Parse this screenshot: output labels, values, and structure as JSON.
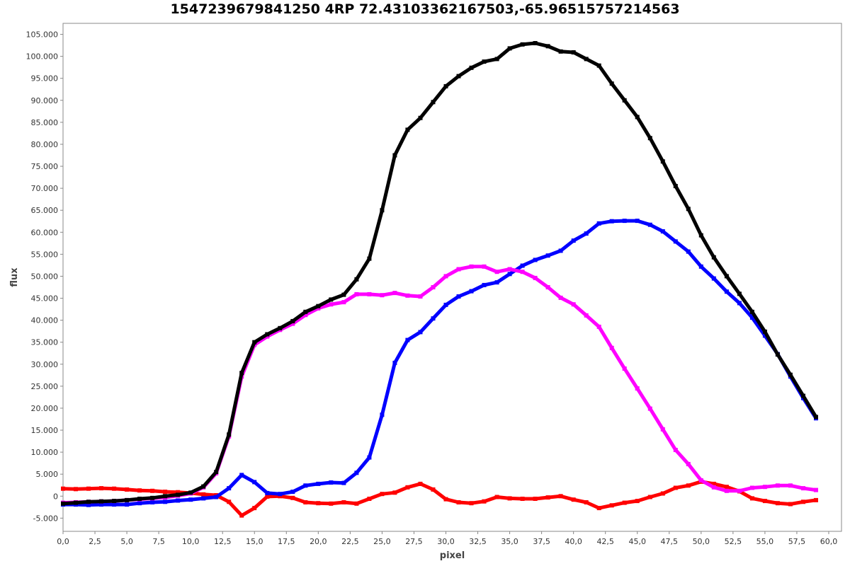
{
  "chart_data": {
    "type": "line",
    "title": "1547239679841250 4RP 72.43103362167503,-65.96515757214563",
    "xlabel": "pixel",
    "ylabel": "flux",
    "xlim": [
      0,
      61
    ],
    "ylim": [
      -8000,
      107500
    ],
    "x_ticks": [
      "0,0",
      "2,5",
      "5,0",
      "7,5",
      "10,0",
      "12,5",
      "15,0",
      "17,5",
      "20,0",
      "22,5",
      "25,0",
      "27,5",
      "30,0",
      "32,5",
      "35,0",
      "37,5",
      "40,0",
      "42,5",
      "45,0",
      "47,5",
      "50,0",
      "52,5",
      "55,0",
      "57,5",
      "60,0"
    ],
    "y_ticks": [
      "-5.000",
      "0",
      "5.000",
      "10.000",
      "15.000",
      "20.000",
      "25.000",
      "30.000",
      "35.000",
      "40.000",
      "45.000",
      "50.000",
      "55.000",
      "60.000",
      "65.000",
      "70.000",
      "75.000",
      "80.000",
      "85.000",
      "90.000",
      "95.000",
      "100.000",
      "105.000"
    ],
    "grid": false,
    "x": [
      0,
      1,
      2,
      3,
      4,
      5,
      6,
      7,
      8,
      9,
      10,
      11,
      12,
      13,
      14,
      15,
      16,
      17,
      18,
      19,
      20,
      21,
      22,
      23,
      24,
      25,
      26,
      27,
      28,
      29,
      30,
      31,
      32,
      33,
      34,
      35,
      36,
      37,
      38,
      39,
      40,
      41,
      42,
      43,
      44,
      45,
      46,
      47,
      48,
      49,
      50,
      51,
      52,
      53,
      54,
      55,
      56,
      57,
      58,
      59
    ],
    "series": [
      {
        "color": "#000000",
        "values": [
          -1700,
          -1500,
          -1300,
          -1200,
          -1100,
          -900,
          -600,
          -400,
          0,
          300,
          800,
          2200,
          5500,
          14000,
          28000,
          35000,
          36800,
          38200,
          39800,
          41900,
          43200,
          44700,
          45800,
          49300,
          54000,
          65000,
          77500,
          83300,
          86000,
          89600,
          93200,
          95500,
          97400,
          98800,
          99400,
          101800,
          102700,
          103000,
          102300,
          101100,
          100900,
          99400,
          97900,
          93800,
          90000,
          86200,
          81400,
          76100,
          70500,
          65300,
          59300,
          54300,
          50000,
          46000,
          41900,
          37400,
          32200,
          27600,
          22800,
          18000
        ]
      },
      {
        "color": "#ff00ff",
        "values": [
          -1500,
          -1400,
          -1300,
          -1200,
          -1100,
          -900,
          -700,
          -500,
          -300,
          100,
          600,
          2000,
          5200,
          13600,
          27200,
          34400,
          36300,
          37800,
          39200,
          41200,
          42700,
          43600,
          44100,
          45900,
          45900,
          45700,
          46200,
          45600,
          45400,
          47500,
          50000,
          51600,
          52200,
          52200,
          51000,
          51600,
          51000,
          49600,
          47500,
          45100,
          43600,
          41100,
          38500,
          33700,
          29000,
          24500,
          19900,
          15200,
          10500,
          7300,
          3600,
          2000,
          1200,
          1200,
          1900,
          2100,
          2400,
          2400,
          1800,
          1400
        ]
      },
      {
        "color": "#0000ff",
        "values": [
          -1900,
          -1900,
          -2000,
          -1900,
          -1900,
          -1900,
          -1600,
          -1400,
          -1300,
          -1000,
          -800,
          -500,
          -200,
          1800,
          4800,
          3200,
          700,
          500,
          1000,
          2400,
          2800,
          3100,
          3000,
          5300,
          8800,
          18500,
          30300,
          35500,
          37300,
          40400,
          43500,
          45400,
          46600,
          48000,
          48600,
          50500,
          52400,
          53700,
          54700,
          55800,
          58100,
          59700,
          62000,
          62500,
          62600,
          62600,
          61700,
          60200,
          57900,
          55600,
          52200,
          49500,
          46500,
          43900,
          40600,
          36500,
          32300,
          27200,
          22300,
          17700
        ]
      },
      {
        "color": "#ff0000",
        "values": [
          1700,
          1600,
          1700,
          1800,
          1700,
          1500,
          1300,
          1200,
          1000,
          900,
          700,
          400,
          200,
          -1300,
          -4400,
          -2700,
          -100,
          0,
          -400,
          -1400,
          -1600,
          -1700,
          -1400,
          -1700,
          -600,
          500,
          800,
          2000,
          2800,
          1500,
          -700,
          -1400,
          -1600,
          -1200,
          -200,
          -500,
          -600,
          -600,
          -300,
          0,
          -800,
          -1400,
          -2700,
          -2100,
          -1500,
          -1100,
          -200,
          600,
          1900,
          2400,
          3300,
          2800,
          2100,
          1100,
          -500,
          -1100,
          -1600,
          -1800,
          -1300,
          -900
        ]
      }
    ]
  }
}
